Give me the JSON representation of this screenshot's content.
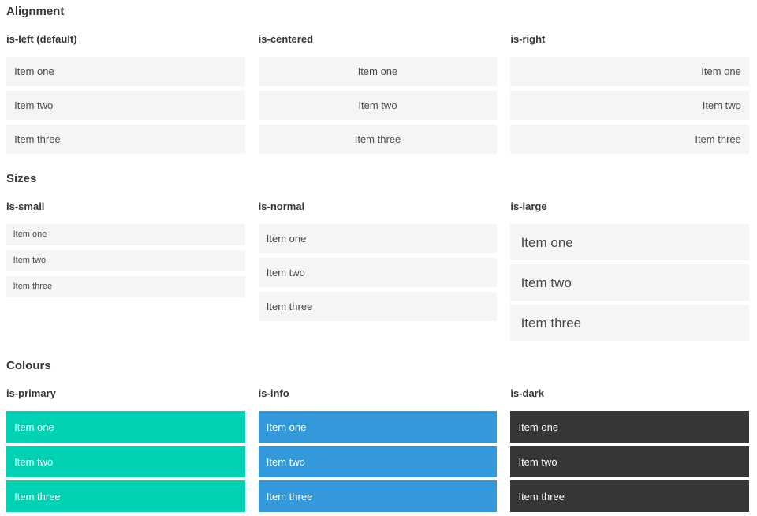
{
  "colors": {
    "page_bg": "#ffffff",
    "item_bg": "#f5f5f5",
    "item_text": "#4a4a4a",
    "heading_text": "#363636",
    "primary": "#00d1b2",
    "info": "#3499db",
    "dark": "#363636",
    "colored_text": "#ffffff"
  },
  "sections": [
    {
      "id": "alignment",
      "title": "Alignment",
      "columns": [
        {
          "label": "is-left (default)",
          "variant": "align-left",
          "items": [
            "Item one",
            "Item two",
            "Item three"
          ]
        },
        {
          "label": "is-centered",
          "variant": "align-center",
          "items": [
            "Item one",
            "Item two",
            "Item three"
          ]
        },
        {
          "label": "is-right",
          "variant": "align-right",
          "items": [
            "Item one",
            "Item two",
            "Item three"
          ]
        }
      ]
    },
    {
      "id": "sizes",
      "title": "Sizes",
      "columns": [
        {
          "label": "is-small",
          "variant": "size-small",
          "items": [
            "Item one",
            "Item two",
            "Item three"
          ]
        },
        {
          "label": "is-normal",
          "variant": "size-normal",
          "items": [
            "Item one",
            "Item two",
            "Item three"
          ]
        },
        {
          "label": "is-large",
          "variant": "size-large",
          "items": [
            "Item one",
            "Item two",
            "Item three"
          ]
        }
      ]
    },
    {
      "id": "colours",
      "title": "Colours",
      "columns": [
        {
          "label": "is-primary",
          "variant": "color-primary",
          "items": [
            "Item one",
            "Item two",
            "Item three"
          ]
        },
        {
          "label": "is-info",
          "variant": "color-info",
          "items": [
            "Item one",
            "Item two",
            "Item three"
          ]
        },
        {
          "label": "is-dark",
          "variant": "color-dark",
          "items": [
            "Item one",
            "Item two",
            "Item three"
          ]
        }
      ]
    }
  ]
}
